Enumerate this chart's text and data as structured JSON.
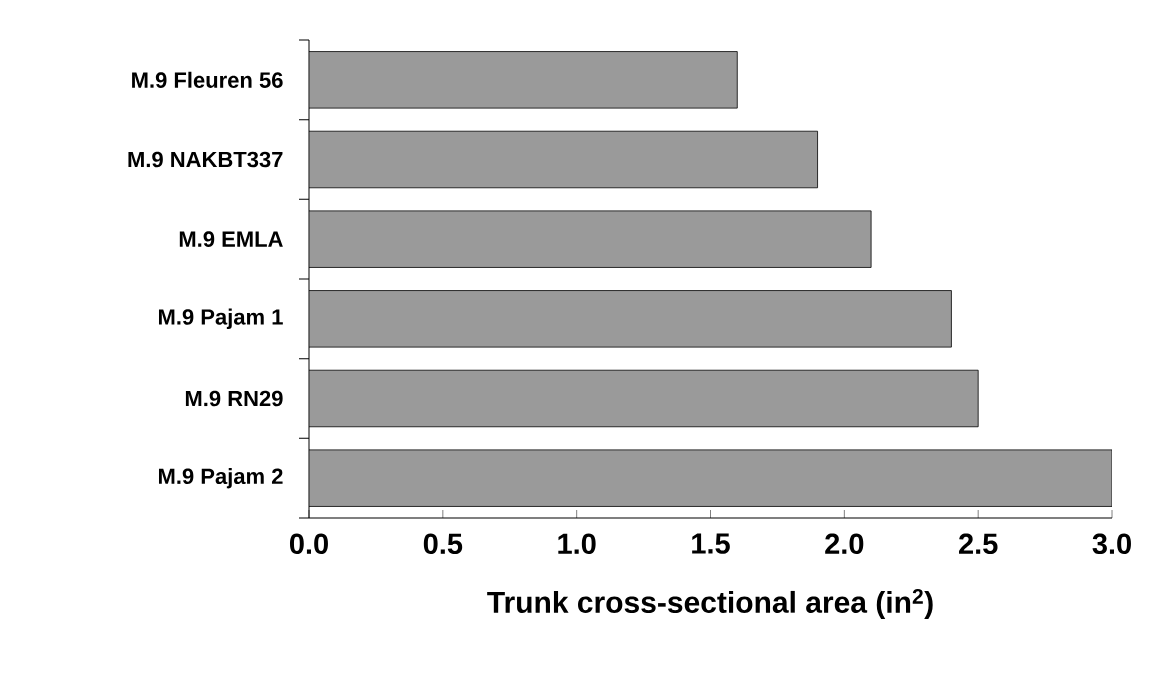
{
  "chart_data": {
    "type": "bar",
    "orientation": "horizontal",
    "xlabel": "Trunk cross-sectional area (in$^{2}$)",
    "categories": [
      "M.9 Fleuren 56",
      "M.9 NAKBT337",
      "M.9 EMLA",
      "M.9 Pajam 1",
      "M.9 RN29",
      "M.9 Pajam 2"
    ],
    "values": [
      1.6,
      1.9,
      2.1,
      2.4,
      2.5,
      3.0
    ],
    "color": "#9a9a9a",
    "xlim": [
      0,
      3.0
    ],
    "xticks": [
      {
        "value": 0,
        "label": "0.0"
      },
      0.5,
      {
        "value": 1,
        "label": "1.0"
      },
      1.5,
      {
        "value": 2,
        "label": "2.0"
      },
      2.5,
      {
        "value": 3,
        "label": "3.0"
      }
    ],
    "tick_labels": "xy"
  }
}
